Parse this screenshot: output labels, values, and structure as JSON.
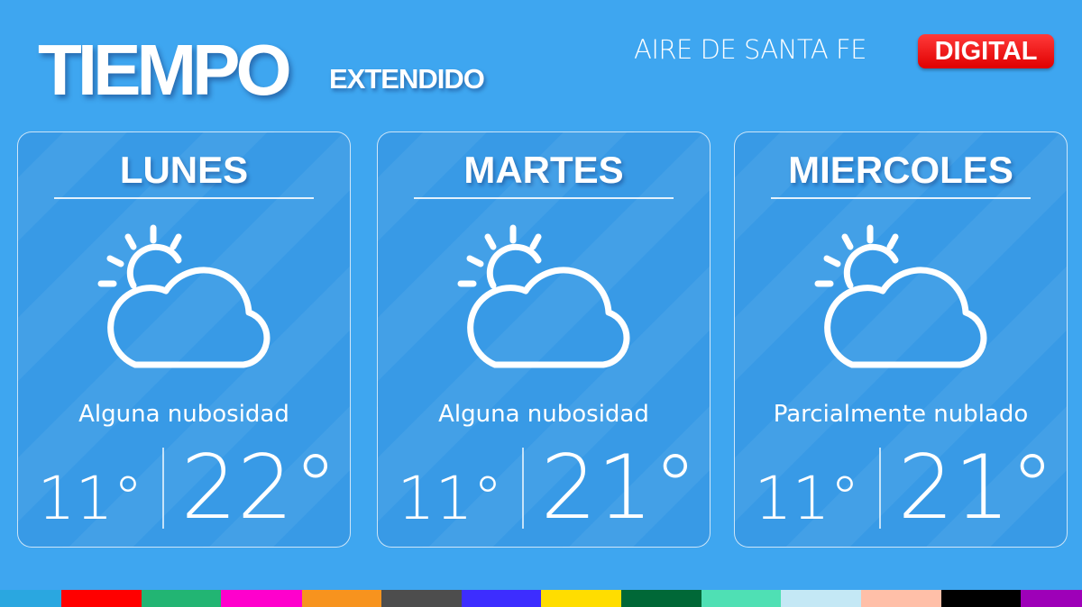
{
  "header": {
    "title": "TIEMPO",
    "subtitle": "EXTENDIDO",
    "brand": "AIRE DE SANTA FE",
    "badge": "DIGITAL",
    "badge_color": "#e00000"
  },
  "days": [
    {
      "day": "LUNES",
      "icon": "partly-cloudy-icon",
      "description": "Alguna nubosidad",
      "min": "11°",
      "max": "22°"
    },
    {
      "day": "MARTES",
      "icon": "partly-cloudy-icon",
      "description": "Alguna nubosidad",
      "min": "11°",
      "max": "21°"
    },
    {
      "day": "MIERCOLES",
      "icon": "partly-cloudy-icon",
      "description": "Parcialmente nublado",
      "min": "11°",
      "max": "21°"
    }
  ],
  "background_color": "#3ea6f0",
  "color_strip": [
    "#2aa7e0",
    "#ff0000",
    "#22b573",
    "#ff00cc",
    "#f7931e",
    "#4d4d4d",
    "#3d2dff",
    "#ffdd00",
    "#006837",
    "#4fe0b4",
    "#c4e8f5",
    "#ffbfa8",
    "#000000",
    "#9e00b8"
  ]
}
